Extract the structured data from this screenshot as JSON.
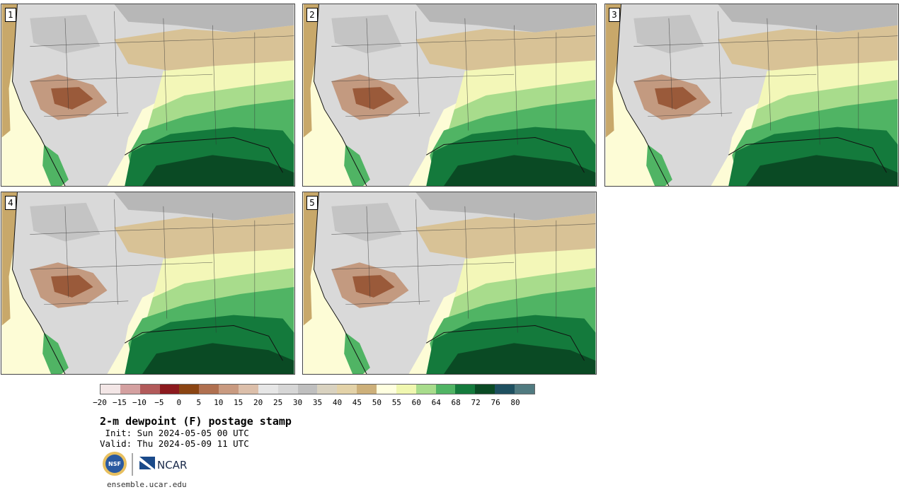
{
  "panels": [
    {
      "label": "1"
    },
    {
      "label": "2"
    },
    {
      "label": "3"
    },
    {
      "label": "4"
    },
    {
      "label": "5"
    }
  ],
  "colorbar": {
    "colors": [
      "#f3e6e6",
      "#d4a0a0",
      "#b25a5a",
      "#8c1a1e",
      "#8b4513",
      "#b07050",
      "#c99a80",
      "#dcbfaa",
      "#e6e6e6",
      "#d6d6d6",
      "#bfbfbf",
      "#d9d2c0",
      "#e3d2a8",
      "#cdb07a",
      "#ffffe0",
      "#f0f7b0",
      "#a8dc8c",
      "#50b464",
      "#147a3c",
      "#0a4a24",
      "#1e5060",
      "#507a80"
    ],
    "ticks": [
      "−20",
      "−15",
      "−10",
      "−5",
      "0",
      "5",
      "10",
      "15",
      "20",
      "25",
      "30",
      "35",
      "40",
      "45",
      "50",
      "55",
      "60",
      "64",
      "68",
      "72",
      "76",
      "80"
    ]
  },
  "title": "2-m dewpoint (F) postage stamp",
  "init": " Init: Sun 2024-05-05 00 UTC",
  "valid": "Valid: Thu 2024-05-09 11 UTC",
  "logos": {
    "nsf": "NSF",
    "ncar": "NCAR"
  },
  "url": "ensemble.ucar.edu"
}
